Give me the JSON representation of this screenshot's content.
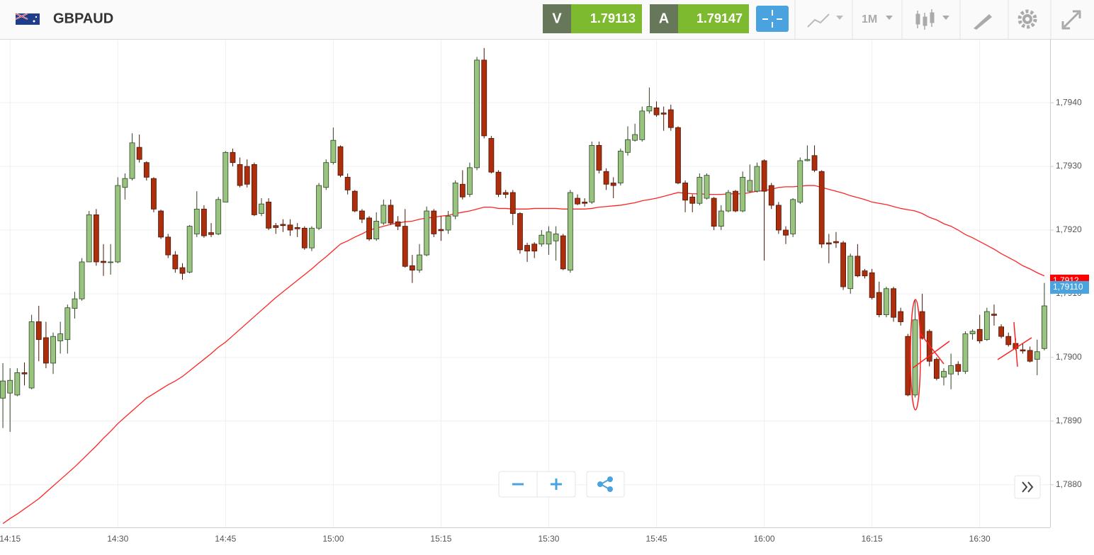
{
  "header": {
    "symbol": "GBPAUD",
    "sell": {
      "label": "V",
      "price": 1.79113
    },
    "buy": {
      "label": "A",
      "price": 1.79147
    },
    "timeframe": "1M"
  },
  "chart_data": {
    "type": "candlestick",
    "up_color": "#98c47f",
    "down_color": "#ad2e0c",
    "ylim": [
      1.78733,
      1.79498
    ],
    "yticks": [
      {
        "value": 1.788,
        "label": "1,7880"
      },
      {
        "value": 1.789,
        "label": "1,7890"
      },
      {
        "value": 1.79,
        "label": "1,7900"
      },
      {
        "value": 1.791,
        "label": "1,7910"
      },
      {
        "value": 1.792,
        "label": "1,7920"
      },
      {
        "value": 1.793,
        "label": "1,7930"
      },
      {
        "value": 1.794,
        "label": "1,7940"
      }
    ],
    "grid": true,
    "price_labels": [
      {
        "value": 1.7912,
        "label": "1,7912",
        "color": "#ff0000"
      },
      {
        "value": 1.7911,
        "label": "1,79110",
        "color": "#4aa3df"
      }
    ],
    "categories": [
      null,
      "14:15",
      null,
      null,
      null,
      null,
      null,
      null,
      null,
      null,
      null,
      null,
      null,
      null,
      null,
      null,
      "14:30",
      null,
      null,
      null,
      null,
      null,
      null,
      null,
      null,
      null,
      null,
      null,
      null,
      null,
      null,
      "14:45",
      null,
      null,
      null,
      null,
      null,
      null,
      null,
      null,
      null,
      null,
      null,
      null,
      null,
      null,
      "15:00",
      null,
      null,
      null,
      null,
      null,
      null,
      null,
      null,
      null,
      null,
      null,
      null,
      null,
      null,
      "15:15",
      null,
      null,
      null,
      null,
      null,
      null,
      null,
      null,
      null,
      null,
      null,
      null,
      null,
      null,
      "15:30",
      null,
      null,
      null,
      null,
      null,
      null,
      null,
      null,
      null,
      null,
      null,
      null,
      null,
      null,
      "15:45",
      null,
      null,
      null,
      null,
      null,
      null,
      null,
      null,
      null,
      null,
      null,
      null,
      null,
      null,
      "16:00",
      null,
      null,
      null,
      null,
      null,
      null,
      null,
      null,
      null,
      null,
      null,
      null,
      null,
      null,
      "16:15",
      null,
      null,
      null,
      null,
      null,
      null,
      null,
      null,
      null,
      null,
      null,
      null,
      null,
      null,
      "16:30",
      null,
      null,
      null,
      null,
      null,
      null,
      null,
      null,
      null
    ],
    "ohlc": [
      [
        1.78936,
        1.78991,
        1.78889,
        1.78963
      ],
      [
        1.78944,
        1.78983,
        1.78883,
        1.78964
      ],
      [
        1.78941,
        1.78983,
        1.78939,
        1.78976
      ],
      [
        1.78976,
        1.78992,
        1.78956,
        1.78974
      ],
      [
        1.78952,
        1.79067,
        1.7895,
        1.79056
      ],
      [
        1.79056,
        1.79081,
        1.78994,
        1.79028
      ],
      [
        1.79031,
        1.79056,
        1.78983,
        1.78991
      ],
      [
        1.78991,
        1.79039,
        1.78974,
        1.79033
      ],
      [
        1.79026,
        1.79056,
        1.79006,
        1.79037
      ],
      [
        1.79028,
        1.79083,
        1.79006,
        1.79078
      ],
      [
        1.79077,
        1.79103,
        1.79061,
        1.79092
      ],
      [
        1.79092,
        1.79156,
        1.79089,
        1.7915
      ],
      [
        1.7915,
        1.7923,
        1.7915,
        1.79224
      ],
      [
        1.79224,
        1.79233,
        1.79144,
        1.7915
      ],
      [
        1.79151,
        1.79178,
        1.79128,
        1.79149
      ],
      [
        1.79149,
        1.79178,
        1.7913,
        1.7915
      ],
      [
        1.7915,
        1.79283,
        1.79148,
        1.7927
      ],
      [
        1.79267,
        1.79289,
        1.79248,
        1.79281
      ],
      [
        1.79281,
        1.79352,
        1.79278,
        1.79337
      ],
      [
        1.7933,
        1.7935,
        1.79306,
        1.79311
      ],
      [
        1.79306,
        1.79308,
        1.79278,
        1.79283
      ],
      [
        1.79281,
        1.79283,
        1.79228,
        1.79233
      ],
      [
        1.7923,
        1.79232,
        1.79186,
        1.79189
      ],
      [
        1.79189,
        1.79194,
        1.79156,
        1.79161
      ],
      [
        1.79161,
        1.79167,
        1.79133,
        1.79139
      ],
      [
        1.79141,
        1.79148,
        1.79122,
        1.79132
      ],
      [
        1.79134,
        1.79208,
        1.79132,
        1.79206
      ],
      [
        1.79194,
        1.79261,
        1.79189,
        1.79233
      ],
      [
        1.79233,
        1.79239,
        1.79188,
        1.79191
      ],
      [
        1.79196,
        1.79211,
        1.79189,
        1.79193
      ],
      [
        1.79194,
        1.79252,
        1.79192,
        1.79248
      ],
      [
        1.79244,
        1.79324,
        1.79244,
        1.79322
      ],
      [
        1.79322,
        1.79328,
        1.793,
        1.79306
      ],
      [
        1.79303,
        1.79314,
        1.79267,
        1.7927
      ],
      [
        1.793,
        1.79311,
        1.79267,
        1.79272
      ],
      [
        1.79303,
        1.79306,
        1.79222,
        1.79224
      ],
      [
        1.79226,
        1.7925,
        1.79222,
        1.79241
      ],
      [
        1.79244,
        1.7925,
        1.792,
        1.79203
      ],
      [
        1.79207,
        1.79211,
        1.79194,
        1.79204
      ],
      [
        1.79209,
        1.79217,
        1.79197,
        1.79207
      ],
      [
        1.79208,
        1.79217,
        1.79191,
        1.792
      ],
      [
        1.79204,
        1.79211,
        1.79189,
        1.79202
      ],
      [
        1.79203,
        1.79206,
        1.79169,
        1.79172
      ],
      [
        1.79172,
        1.79206,
        1.79167,
        1.79203
      ],
      [
        1.79203,
        1.79274,
        1.792,
        1.7927
      ],
      [
        1.79267,
        1.79311,
        1.79263,
        1.79306
      ],
      [
        1.79306,
        1.79361,
        1.79303,
        1.79341
      ],
      [
        1.79331,
        1.79333,
        1.79283,
        1.79286
      ],
      [
        1.79283,
        1.79289,
        1.79256,
        1.79263
      ],
      [
        1.79261,
        1.79263,
        1.79228,
        1.7923
      ],
      [
        1.7923,
        1.79233,
        1.79211,
        1.79217
      ],
      [
        1.79219,
        1.79222,
        1.79183,
        1.79186
      ],
      [
        1.79186,
        1.79228,
        1.79183,
        1.79214
      ],
      [
        1.79211,
        1.79248,
        1.79208,
        1.79239
      ],
      [
        1.79239,
        1.79248,
        1.79208,
        1.79211
      ],
      [
        1.79213,
        1.79222,
        1.792,
        1.79206
      ],
      [
        1.79206,
        1.79233,
        1.79141,
        1.79143
      ],
      [
        1.79144,
        1.79161,
        1.79117,
        1.79137
      ],
      [
        1.79137,
        1.79178,
        1.79133,
        1.79161
      ],
      [
        1.79161,
        1.79237,
        1.79159,
        1.7923
      ],
      [
        1.7923,
        1.79233,
        1.79189,
        1.79194
      ],
      [
        1.79201,
        1.79222,
        1.79183,
        1.79199
      ],
      [
        1.792,
        1.7923,
        1.79194,
        1.79222
      ],
      [
        1.79222,
        1.79278,
        1.79217,
        1.79274
      ],
      [
        1.79272,
        1.79294,
        1.79248,
        1.79252
      ],
      [
        1.79256,
        1.79306,
        1.79252,
        1.79298
      ],
      [
        1.79298,
        1.79472,
        1.79294,
        1.79467
      ],
      [
        1.79467,
        1.79486,
        1.79344,
        1.79348
      ],
      [
        1.79344,
        1.79348,
        1.79289,
        1.79291
      ],
      [
        1.79291,
        1.79294,
        1.79252,
        1.79256
      ],
      [
        1.79259,
        1.79263,
        1.7925,
        1.79256
      ],
      [
        1.79259,
        1.79263,
        1.79208,
        1.79226
      ],
      [
        1.79226,
        1.79228,
        1.79163,
        1.79169
      ],
      [
        1.79176,
        1.7918,
        1.7915,
        1.79167
      ],
      [
        1.79178,
        1.79181,
        1.79156,
        1.79167
      ],
      [
        1.79178,
        1.792,
        1.79174,
        1.79192
      ],
      [
        1.79178,
        1.79206,
        1.79161,
        1.79197
      ],
      [
        1.79183,
        1.79206,
        1.79152,
        1.79194
      ],
      [
        1.79191,
        1.79194,
        1.79137,
        1.79139
      ],
      [
        1.79137,
        1.79263,
        1.79133,
        1.79259
      ],
      [
        1.7925,
        1.79256,
        1.79239,
        1.79241
      ],
      [
        1.79244,
        1.7925,
        1.79237,
        1.79242
      ],
      [
        1.79244,
        1.79339,
        1.79241,
        1.79333
      ],
      [
        1.79333,
        1.79339,
        1.79289,
        1.79294
      ],
      [
        1.79292,
        1.79297,
        1.79263,
        1.79272
      ],
      [
        1.79274,
        1.79283,
        1.7925,
        1.7927
      ],
      [
        1.79274,
        1.79328,
        1.7927,
        1.79324
      ],
      [
        1.79322,
        1.79363,
        1.79317,
        1.79342
      ],
      [
        1.79341,
        1.79367,
        1.79339,
        1.7935
      ],
      [
        1.79342,
        1.79394,
        1.79339,
        1.79387
      ],
      [
        1.79387,
        1.79424,
        1.79383,
        1.79394
      ],
      [
        1.79392,
        1.79402,
        1.79378,
        1.79381
      ],
      [
        1.79384,
        1.79394,
        1.79356,
        1.79382
      ],
      [
        1.79389,
        1.79397,
        1.79356,
        1.79361
      ],
      [
        1.79361,
        1.79363,
        1.79272,
        1.79274
      ],
      [
        1.79274,
        1.79278,
        1.79228,
        1.79247
      ],
      [
        1.79252,
        1.79256,
        1.79228,
        1.79242
      ],
      [
        1.79242,
        1.79289,
        1.79239,
        1.79283
      ],
      [
        1.7925,
        1.79289,
        1.79248,
        1.79286
      ],
      [
        1.7925,
        1.79252,
        1.792,
        1.79206
      ],
      [
        1.79206,
        1.79239,
        1.792,
        1.7923
      ],
      [
        1.7923,
        1.79263,
        1.79228,
        1.79259
      ],
      [
        1.79261,
        1.79263,
        1.79228,
        1.7923
      ],
      [
        1.7923,
        1.79292,
        1.79228,
        1.79283
      ],
      [
        1.79261,
        1.79303,
        1.79259,
        1.79278
      ],
      [
        1.79261,
        1.79306,
        1.79259,
        1.793
      ],
      [
        1.79309,
        1.79311,
        1.79152,
        1.79261
      ],
      [
        1.7927,
        1.79274,
        1.79233,
        1.79239
      ],
      [
        1.79239,
        1.79244,
        1.79194,
        1.792
      ],
      [
        1.792,
        1.79206,
        1.79178,
        1.79192
      ],
      [
        1.79194,
        1.7925,
        1.79189,
        1.79248
      ],
      [
        1.79244,
        1.79314,
        1.79241,
        1.79309
      ],
      [
        1.79309,
        1.79333,
        1.79308,
        1.79311
      ],
      [
        1.79317,
        1.79333,
        1.79291,
        1.79294
      ],
      [
        1.79292,
        1.79294,
        1.79172,
        1.79178
      ],
      [
        1.7918,
        1.79194,
        1.79148,
        1.79178
      ],
      [
        1.79182,
        1.79197,
        1.79172,
        1.7918
      ],
      [
        1.7918,
        1.79183,
        1.79106,
        1.79111
      ],
      [
        1.79108,
        1.79163,
        1.791,
        1.79159
      ],
      [
        1.79159,
        1.79178,
        1.79126,
        1.79128
      ],
      [
        1.79136,
        1.79139,
        1.79124,
        1.79128
      ],
      [
        1.79133,
        1.79139,
        1.79091,
        1.79094
      ],
      [
        1.79102,
        1.79119,
        1.79063,
        1.79067
      ],
      [
        1.79067,
        1.79111,
        1.79063,
        1.79108
      ],
      [
        1.79108,
        1.79111,
        1.79056,
        1.79063
      ],
      [
        1.79072,
        1.79078,
        1.7905,
        1.79056
      ],
      [
        1.79033,
        1.79037,
        1.78939,
        1.78941
      ],
      [
        1.78941,
        1.7909,
        1.78937,
        1.79059
      ],
      [
        1.79072,
        1.791,
        1.79028,
        1.7903
      ],
      [
        1.79041,
        1.79044,
        1.78986,
        1.78994
      ],
      [
        1.78997,
        1.79,
        1.78964,
        1.78967
      ],
      [
        1.78969,
        1.78983,
        1.78956,
        1.78978
      ],
      [
        1.78974,
        1.79006,
        1.7895,
        1.78987
      ],
      [
        1.78989,
        1.78994,
        1.78972,
        1.78978
      ],
      [
        1.78978,
        1.79041,
        1.78974,
        1.79037
      ],
      [
        1.79037,
        1.79044,
        1.79028,
        1.79041
      ],
      [
        1.79044,
        1.79067,
        1.79022,
        1.79026
      ],
      [
        1.79028,
        1.79078,
        1.79026,
        1.79072
      ],
      [
        1.79068,
        1.79083,
        1.7905,
        1.79066
      ],
      [
        1.79048,
        1.79052,
        1.7903,
        1.79033
      ],
      [
        1.79033,
        1.79039,
        1.79017,
        1.7902
      ],
      [
        1.79022,
        1.7903,
        1.79011,
        1.79014
      ],
      [
        1.79012,
        1.79022,
        1.79006,
        1.7901
      ],
      [
        1.79011,
        1.79017,
        1.78992,
        1.78994
      ],
      [
        1.78997,
        1.79028,
        1.78972,
        1.79009
      ],
      [
        1.79014,
        1.79117,
        1.79011,
        1.79081
      ]
    ],
    "ma": {
      "color": "#ff2424",
      "values": [
        1.78739,
        1.78747,
        1.78754,
        1.78762,
        1.7877,
        1.78778,
        1.78788,
        1.78798,
        1.78808,
        1.78818,
        1.78828,
        1.78839,
        1.7885,
        1.78861,
        1.78873,
        1.78884,
        1.78896,
        1.78906,
        1.78916,
        1.78926,
        1.78936,
        1.78943,
        1.7895,
        1.78957,
        1.78963,
        1.7897,
        1.78979,
        1.78988,
        1.78997,
        1.79006,
        1.79016,
        1.79024,
        1.79034,
        1.79044,
        1.79054,
        1.79064,
        1.79074,
        1.79084,
        1.79094,
        1.79103,
        1.79112,
        1.79121,
        1.7913,
        1.79139,
        1.79149,
        1.79158,
        1.79168,
        1.79178,
        1.79183,
        1.79189,
        1.79194,
        1.792,
        1.79203,
        1.79206,
        1.79209,
        1.79211,
        1.79213,
        1.79214,
        1.79217,
        1.79219,
        1.7922,
        1.79222,
        1.79223,
        1.79226,
        1.79228,
        1.7923,
        1.79233,
        1.79236,
        1.79236,
        1.79234,
        1.79234,
        1.79233,
        1.79233,
        1.79233,
        1.79234,
        1.79234,
        1.79234,
        1.79234,
        1.79233,
        1.79233,
        1.79233,
        1.79233,
        1.79234,
        1.79236,
        1.79237,
        1.79238,
        1.79239,
        1.79241,
        1.79243,
        1.79246,
        1.79248,
        1.7925,
        1.79253,
        1.79256,
        1.79259,
        1.79258,
        1.79257,
        1.79257,
        1.79256,
        1.79256,
        1.79256,
        1.79257,
        1.79257,
        1.79257,
        1.79259,
        1.79261,
        1.79262,
        1.79264,
        1.79267,
        1.79268,
        1.79268,
        1.79269,
        1.7927,
        1.7927,
        1.79267,
        1.79264,
        1.79261,
        1.79258,
        1.79254,
        1.79251,
        1.79248,
        1.79244,
        1.79242,
        1.7924,
        1.79237,
        1.79234,
        1.79232,
        1.7923,
        1.79226,
        1.7922,
        1.79216,
        1.7921,
        1.79206,
        1.792,
        1.79193,
        1.79188,
        1.79182,
        1.79176,
        1.7917,
        1.79163,
        1.79157,
        1.79151,
        1.79144,
        1.79139,
        1.79133,
        1.79128
      ]
    }
  }
}
